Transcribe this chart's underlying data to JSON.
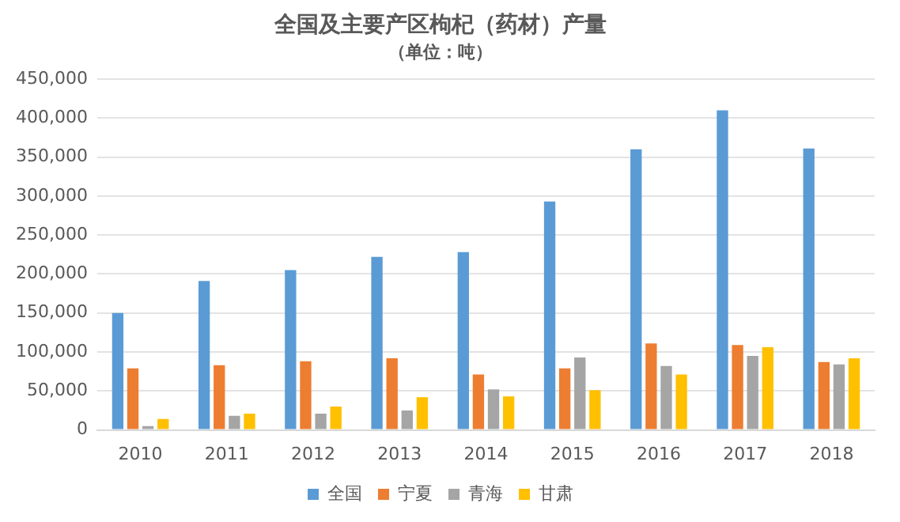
{
  "chart_data": {
    "type": "bar",
    "title": "全国及主要产区枸杞（药材）产量",
    "subtitle": "（单位：吨）",
    "categories": [
      "2010",
      "2011",
      "2012",
      "2013",
      "2014",
      "2015",
      "2016",
      "2017",
      "2018"
    ],
    "series": [
      {
        "name": "全国",
        "color": "#5b9bd5",
        "values": [
          150000,
          191000,
          205000,
          222000,
          228000,
          293000,
          360000,
          410000,
          361000
        ]
      },
      {
        "name": "宁夏",
        "color": "#ed7d31",
        "values": [
          79000,
          83000,
          88000,
          92000,
          71000,
          79000,
          111000,
          109000,
          87000
        ]
      },
      {
        "name": "青海",
        "color": "#a5a5a5",
        "values": [
          5000,
          18000,
          21000,
          25000,
          52000,
          93000,
          82000,
          95000,
          84000
        ]
      },
      {
        "name": "甘肃",
        "color": "#ffc000",
        "values": [
          14000,
          21000,
          30000,
          42000,
          43000,
          51000,
          71000,
          106000,
          92000
        ]
      }
    ],
    "ylim": [
      0,
      450000
    ],
    "yticks": [
      0,
      {
        "value": 50000,
        "label": "50,000"
      },
      {
        "value": 100000,
        "label": "100,000"
      },
      {
        "value": 150000,
        "label": "150,000"
      },
      {
        "value": 200000,
        "label": "200,000"
      },
      {
        "value": 250000,
        "label": "250,000"
      },
      {
        "value": 300000,
        "label": "300,000"
      },
      {
        "value": 350000,
        "label": "350,000"
      },
      {
        "value": 400000,
        "label": "400,000"
      },
      {
        "value": 450000,
        "label": "450,000"
      }
    ],
    "grid": "y",
    "legend": "bottom"
  }
}
